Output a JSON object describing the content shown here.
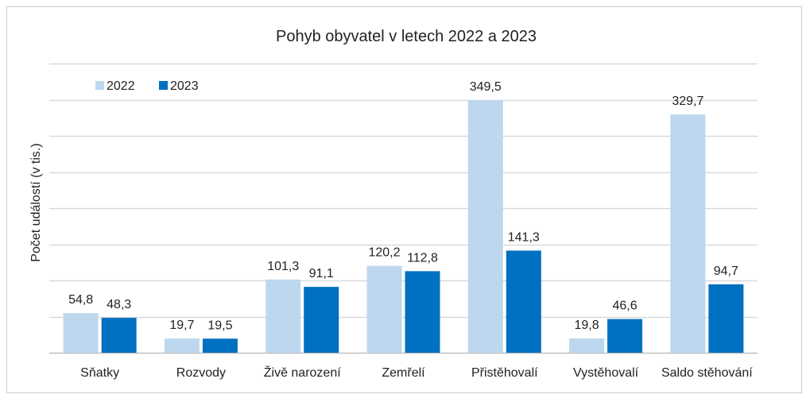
{
  "chart_data": {
    "type": "bar",
    "title": "Pohyb obyvatel v letech 2022 a 2023",
    "xlabel": "",
    "ylabel": "Počet událostí  (v tis.)",
    "ylim": [
      0,
      400
    ],
    "y_grid_step": 50,
    "grid": true,
    "legend_position": "top-left",
    "categories": [
      "Sňatky",
      "Rozvody",
      "Živě narození",
      "Zemřelí",
      "Přistěhovalí",
      "Vystěhovalí",
      "Saldo stěhování"
    ],
    "series": [
      {
        "name": "2022",
        "color": "#bdd7ee",
        "values": [
          54.8,
          19.7,
          101.3,
          120.2,
          349.5,
          19.8,
          329.7
        ],
        "labels": [
          "54,8",
          "19,7",
          "101,3",
          "120,2",
          "349,5",
          "19,8",
          "329,7"
        ]
      },
      {
        "name": "2023",
        "color": "#0070c0",
        "values": [
          48.3,
          19.5,
          91.1,
          112.8,
          141.3,
          46.6,
          94.7
        ],
        "labels": [
          "48,3",
          "19,5",
          "91,1",
          "112,8",
          "141,3",
          "46,6",
          "94,7"
        ]
      }
    ]
  }
}
